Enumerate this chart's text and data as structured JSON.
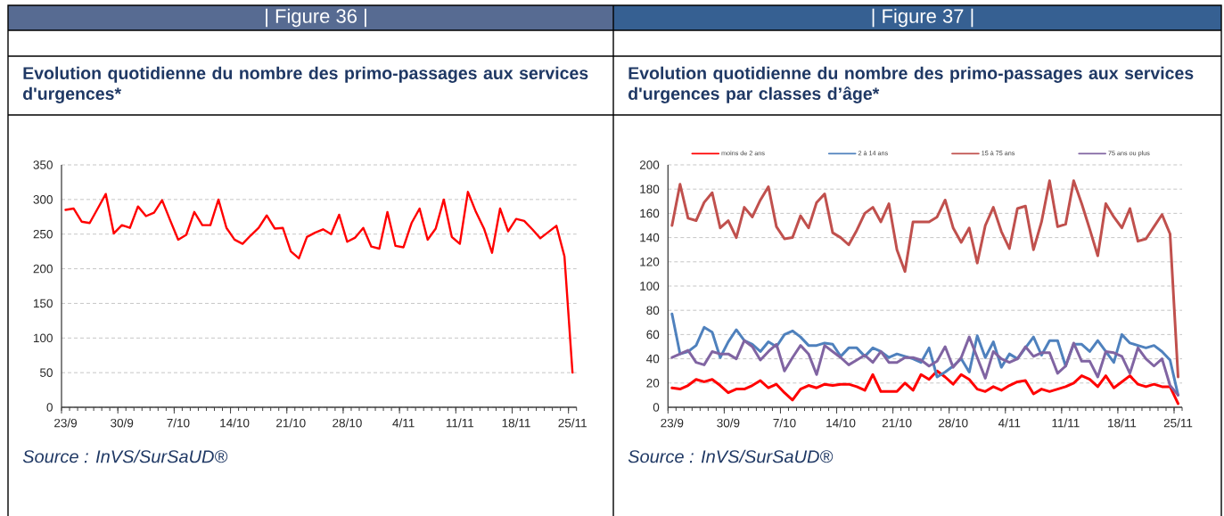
{
  "chart_data": [
    {
      "type": "line",
      "title": "Evolution quotidienne du nombre des primo-passages aux services d'urgences*",
      "annotations": [
        "| Figure 36 |",
        "Source : InVS/SurSaUD®"
      ],
      "categories": [
        "23/9",
        null,
        null,
        null,
        null,
        null,
        null,
        "30/9",
        null,
        null,
        null,
        null,
        null,
        null,
        "7/10",
        null,
        null,
        null,
        null,
        null,
        null,
        "14/10",
        null,
        null,
        null,
        null,
        null,
        null,
        "21/10",
        null,
        null,
        null,
        null,
        null,
        null,
        "28/10",
        null,
        null,
        null,
        null,
        null,
        null,
        "4/11",
        null,
        null,
        null,
        null,
        null,
        null,
        "11/11",
        null,
        null,
        null,
        null,
        null,
        null,
        "18/11",
        null,
        null,
        null,
        null,
        null,
        null,
        "25/11"
      ],
      "series": [
        {
          "color": "#ff0000",
          "values": [
            285,
            287,
            268,
            266,
            287,
            308,
            251,
            263,
            259,
            290,
            276,
            281,
            299,
            270,
            242,
            249,
            282,
            263,
            263,
            300,
            259,
            242,
            236,
            248,
            259,
            277,
            258,
            259,
            225,
            215,
            246,
            252,
            257,
            250,
            278,
            239,
            245,
            259,
            232,
            229,
            282,
            233,
            231,
            266,
            287,
            242,
            258,
            300,
            246,
            236,
            311,
            282,
            258,
            223,
            287,
            254,
            272,
            269,
            257,
            244,
            253,
            262,
            218,
            50
          ]
        }
      ],
      "ylim": [
        0,
        350
      ],
      "yticks": [
        0,
        50,
        100,
        150,
        200,
        250,
        300,
        350
      ],
      "grid": "y",
      "marker": "none",
      "line_style": "solid"
    },
    {
      "type": "line",
      "title": "Evolution quotidienne du nombre des primo-passages aux services d'urgences  par classes d’âge*",
      "annotations": [
        "| Figure 37 |",
        "Source : InVS/SurSaUD®"
      ],
      "categories": [
        "23/9",
        null,
        null,
        null,
        null,
        null,
        null,
        "30/9",
        null,
        null,
        null,
        null,
        null,
        null,
        "7/10",
        null,
        null,
        null,
        null,
        null,
        null,
        "14/10",
        null,
        null,
        null,
        null,
        null,
        null,
        "21/10",
        null,
        null,
        null,
        null,
        null,
        null,
        "28/10",
        null,
        null,
        null,
        null,
        null,
        null,
        "4/11",
        null,
        null,
        null,
        null,
        null,
        null,
        "11/11",
        null,
        null,
        null,
        null,
        null,
        null,
        "18/11",
        null,
        null,
        null,
        null,
        null,
        null,
        "25/11"
      ],
      "series": [
        {
          "name": "moins de 2 ans",
          "color": "#ff0000",
          "values": [
            16,
            15,
            18,
            23,
            21,
            23,
            18,
            12,
            15,
            15,
            18,
            22,
            16,
            19,
            12,
            6,
            15,
            18,
            16,
            19,
            18,
            19,
            19,
            17,
            14,
            27,
            13,
            13,
            13,
            20,
            14,
            27,
            23,
            30,
            25,
            19,
            27,
            23,
            15,
            13,
            17,
            14,
            18,
            21,
            22,
            11,
            15,
            13,
            15,
            17,
            20,
            26,
            23,
            17,
            26,
            16,
            21,
            26,
            19,
            17,
            19,
            17,
            17,
            3
          ]
        },
        {
          "name": "2 à 14 ans",
          "color": "#4f81bd",
          "values": [
            77,
            44,
            46,
            51,
            66,
            62,
            41,
            54,
            64,
            55,
            52,
            46,
            54,
            50,
            60,
            63,
            58,
            51,
            51,
            53,
            52,
            42,
            49,
            49,
            42,
            49,
            46,
            41,
            44,
            42,
            40,
            37,
            49,
            25,
            29,
            34,
            40,
            29,
            59,
            41,
            54,
            33,
            44,
            40,
            49,
            58,
            43,
            55,
            55,
            34,
            52,
            52,
            46,
            55,
            46,
            37,
            60,
            53,
            51,
            49,
            51,
            46,
            39,
            10
          ]
        },
        {
          "name": "15 à 75 ans",
          "color": "#c0504d",
          "values": [
            150,
            184,
            156,
            154,
            169,
            177,
            148,
            154,
            140,
            165,
            157,
            171,
            182,
            149,
            139,
            140,
            158,
            148,
            169,
            176,
            144,
            140,
            134,
            146,
            160,
            165,
            153,
            168,
            130,
            112,
            153,
            153,
            153,
            157,
            171,
            148,
            136,
            148,
            119,
            150,
            165,
            145,
            131,
            164,
            166,
            130,
            153,
            187,
            149,
            151,
            187,
            168,
            147,
            125,
            168,
            157,
            148,
            164,
            137,
            139,
            149,
            159,
            143,
            25
          ]
        },
        {
          "name": "75 ans ou plus",
          "color": "#8064a2",
          "values": [
            41,
            44,
            47,
            37,
            35,
            46,
            44,
            44,
            40,
            55,
            50,
            39,
            46,
            52,
            30,
            41,
            51,
            44,
            27,
            51,
            46,
            41,
            35,
            39,
            43,
            37,
            46,
            37,
            37,
            41,
            41,
            39,
            34,
            38,
            50,
            33,
            41,
            58,
            41,
            24,
            46,
            40,
            37,
            40,
            50,
            42,
            45,
            45,
            28,
            34,
            53,
            38,
            38,
            25,
            46,
            45,
            42,
            28,
            49,
            40,
            34,
            40,
            18,
            10
          ]
        }
      ],
      "ylim": [
        0,
        200
      ],
      "yticks": [
        0,
        20,
        40,
        60,
        80,
        100,
        120,
        140,
        160,
        180,
        200
      ],
      "grid": "y",
      "legend": "top",
      "marker": "none",
      "line_style": "solid"
    }
  ]
}
